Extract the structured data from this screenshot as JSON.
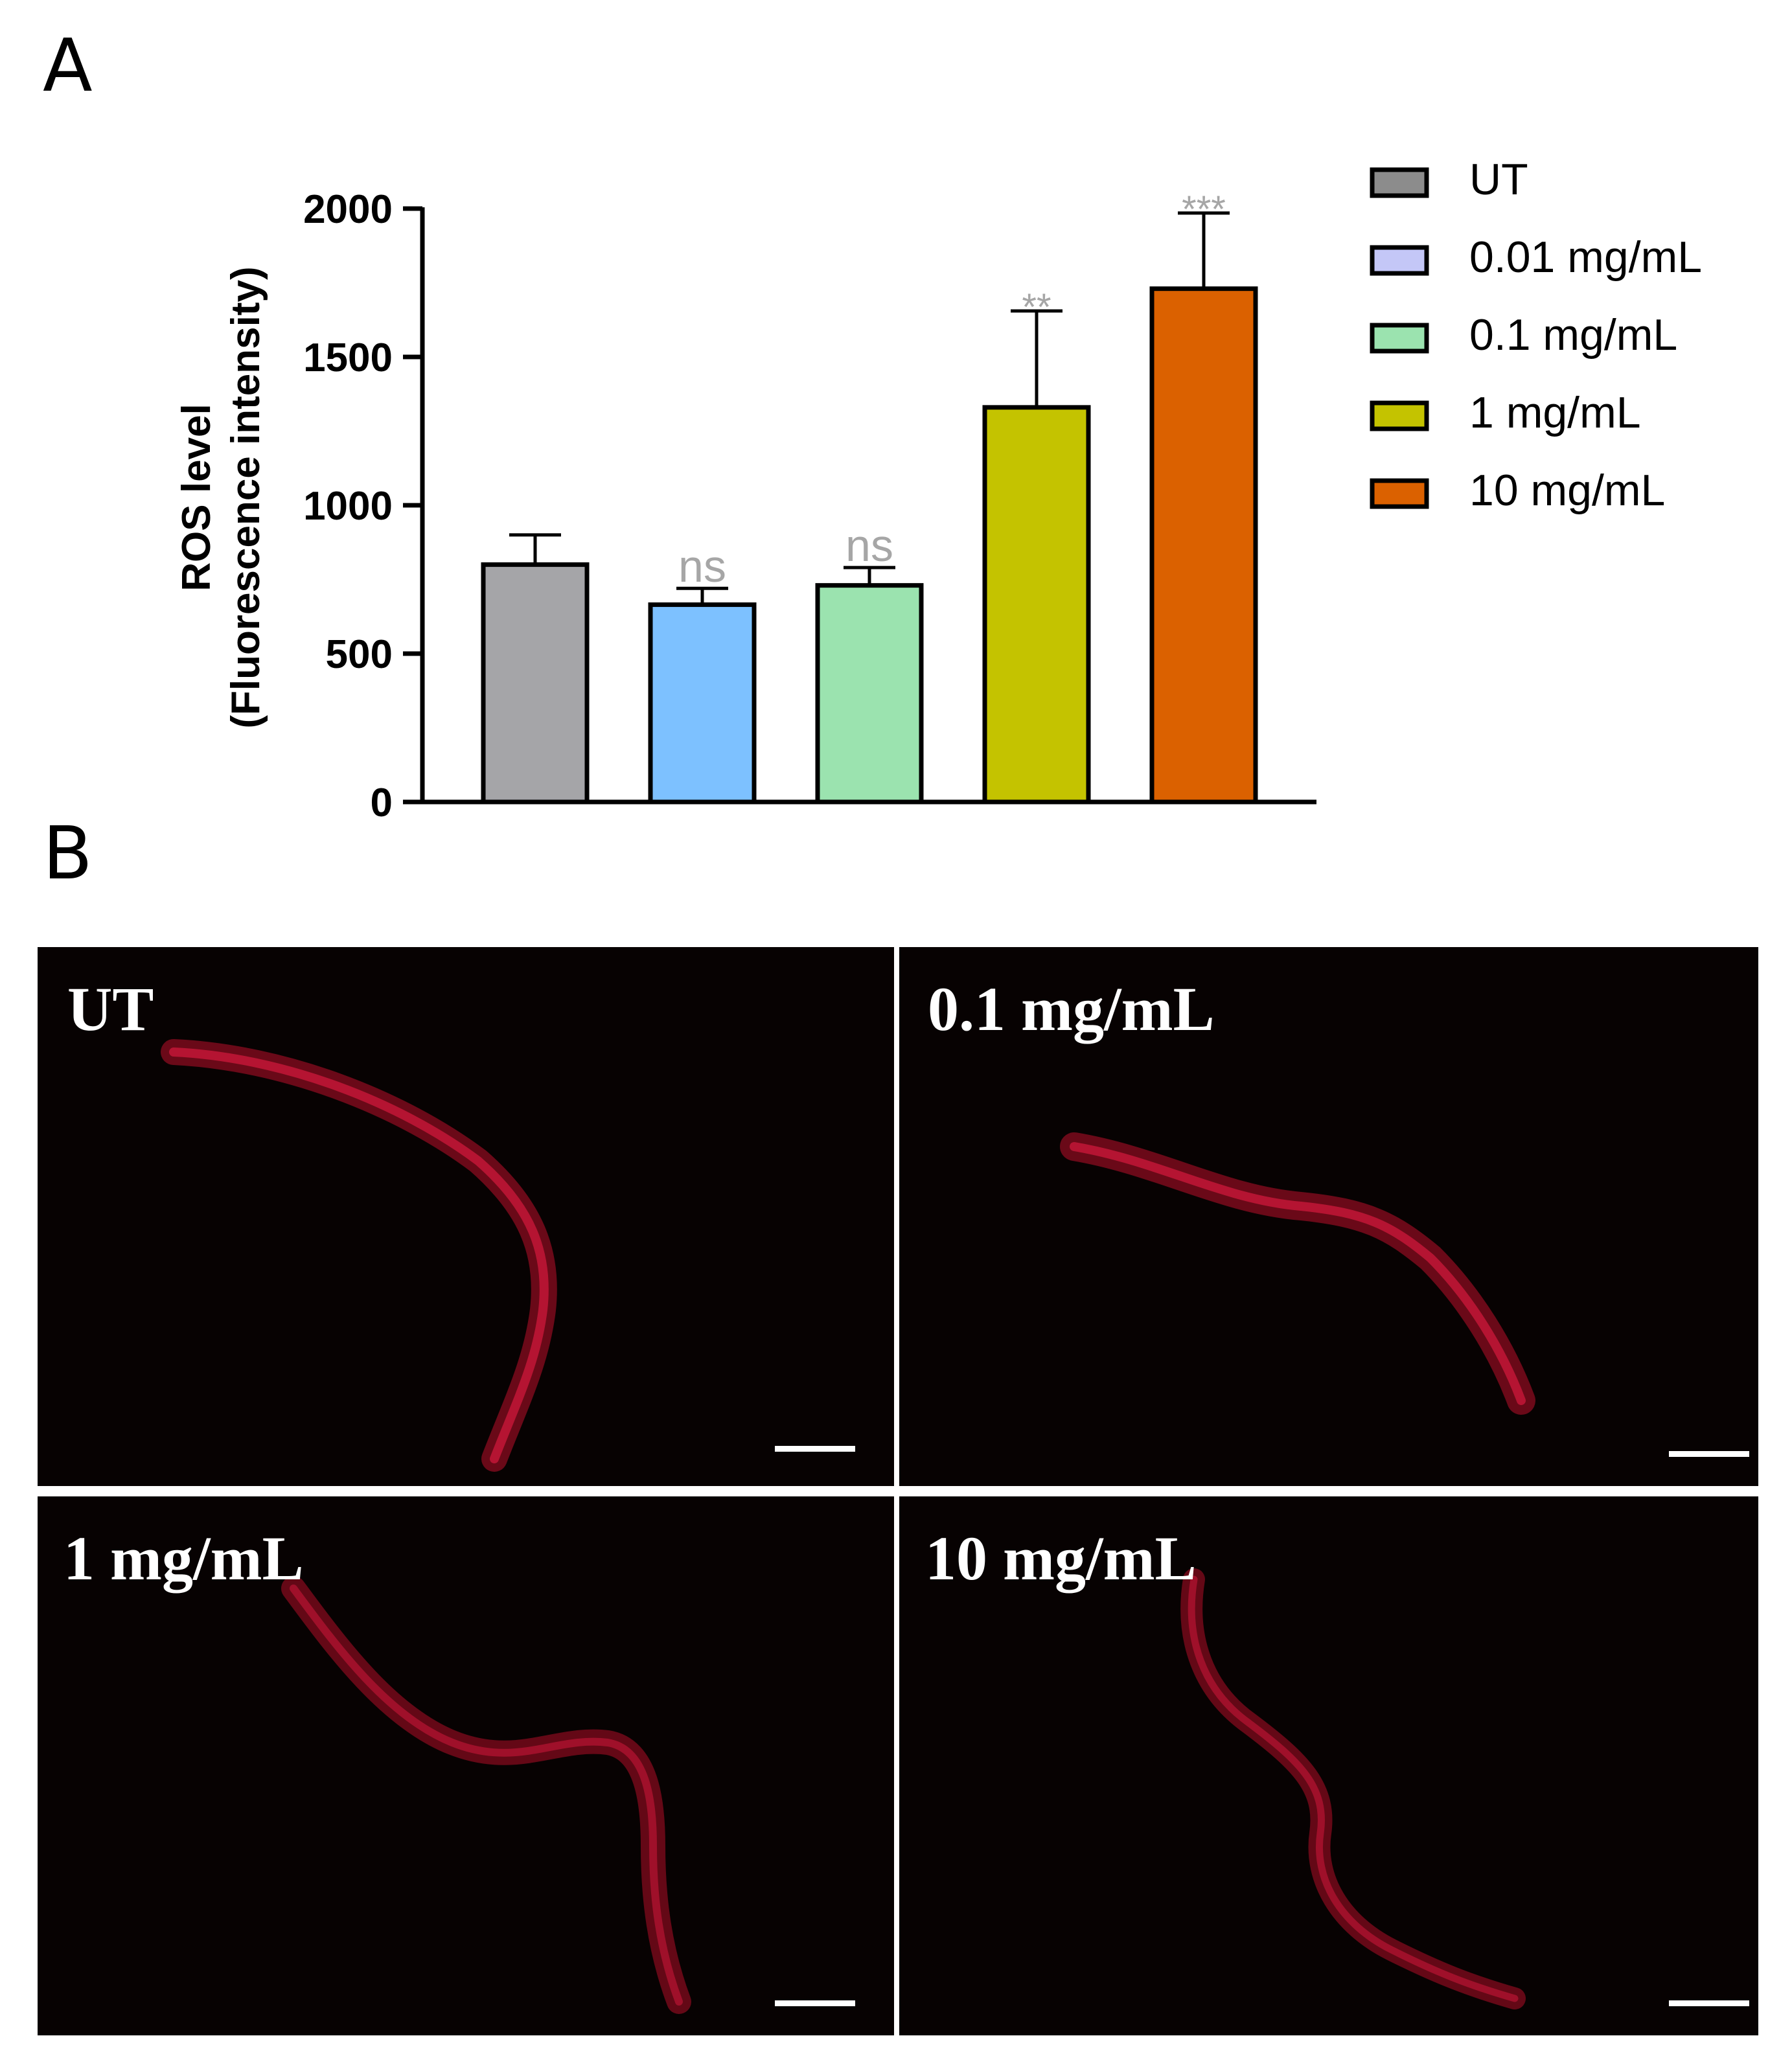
{
  "panels": {
    "a_label": "A",
    "b_label": "B"
  },
  "chart_data": {
    "type": "bar",
    "ylabel_line1": "ROS level",
    "ylabel_line2": "(Fluorescence intensity)",
    "ylim": [
      0,
      2000
    ],
    "yticks": [
      0,
      500,
      1000,
      1500,
      2000
    ],
    "grid": false,
    "legend_position": "right",
    "categories": [
      "UT",
      "0.01 mg/mL",
      "0.1 mg/mL",
      "1 mg/mL",
      "10 mg/mL"
    ],
    "values": [
      800,
      665,
      730,
      1330,
      1730
    ],
    "errors": [
      100,
      55,
      60,
      325,
      255
    ],
    "significance": [
      "",
      "ns",
      "ns",
      "**",
      "***"
    ],
    "bar_colors": [
      "#A5A5A8",
      "#7DC1FF",
      "#9BE3AF",
      "#C4C300",
      "#DB6100"
    ],
    "legend_colors": [
      "#8C8C8C",
      "#C4C7F7",
      "#9BE3AF",
      "#C4C300",
      "#DB6100"
    ]
  },
  "micrographs": [
    {
      "label": "UT"
    },
    {
      "label": "0.1 mg/mL"
    },
    {
      "label": "1 mg/mL"
    },
    {
      "label": "10 mg/mL"
    }
  ],
  "colors": {
    "worm": "#b0102a",
    "sig_text": "#a6a6a6"
  }
}
